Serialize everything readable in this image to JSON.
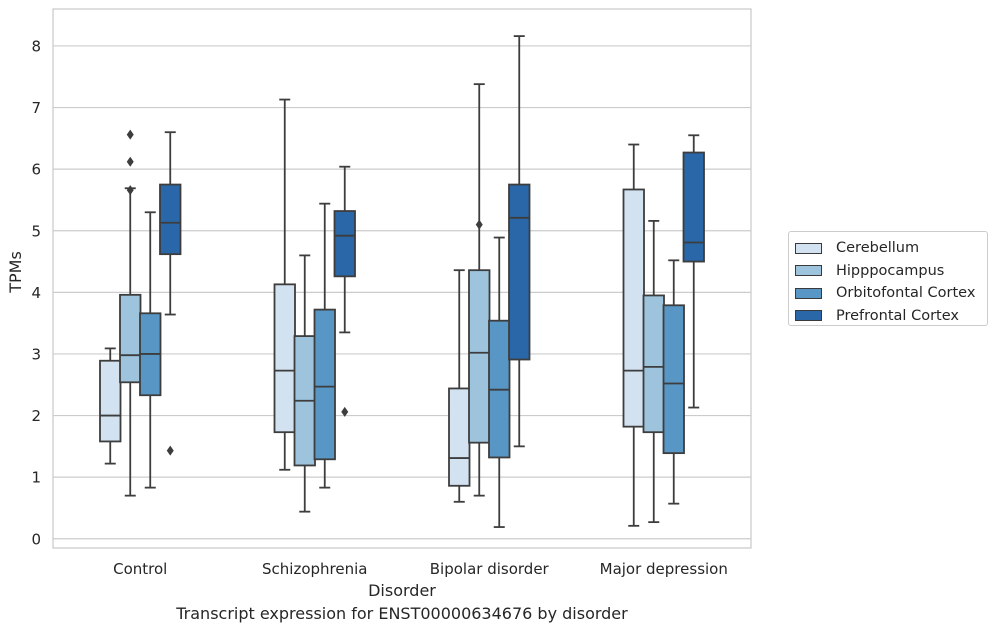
{
  "caption": "Transcript expression for ENST00000634676 by disorder",
  "chart_data": {
    "type": "boxplot",
    "xlabel": "Disorder",
    "ylabel": "TPMs",
    "ylim": [
      -0.15,
      8.6
    ],
    "yticks": [
      0,
      1,
      2,
      3,
      4,
      5,
      6,
      7,
      8
    ],
    "grid": "horizontal",
    "legend_position": "right",
    "categories": [
      "Control",
      "Schizophrenia",
      "Bipolar disorder",
      "Major depression"
    ],
    "series": [
      {
        "name": "Cerebellum",
        "color": "#d3e2f1",
        "boxes": [
          {
            "whislo": 1.22,
            "q1": 1.58,
            "med": 2.0,
            "q3": 2.89,
            "whishi": 3.09,
            "fliers": []
          },
          {
            "whislo": 1.12,
            "q1": 1.73,
            "med": 2.73,
            "q3": 4.13,
            "whishi": 7.13,
            "fliers": []
          },
          {
            "whislo": 0.6,
            "q1": 0.86,
            "med": 1.31,
            "q3": 2.44,
            "whishi": 4.36,
            "fliers": []
          },
          {
            "whislo": 0.21,
            "q1": 1.82,
            "med": 2.73,
            "q3": 5.67,
            "whishi": 6.4,
            "fliers": []
          }
        ]
      },
      {
        "name": "Hipppocampus",
        "color": "#9dc3dd",
        "boxes": [
          {
            "whislo": 0.7,
            "q1": 2.54,
            "med": 2.98,
            "q3": 3.96,
            "whishi": 5.69,
            "fliers": [
              5.66,
              6.12,
              6.56
            ]
          },
          {
            "whislo": 0.44,
            "q1": 1.19,
            "med": 2.24,
            "q3": 3.29,
            "whishi": 4.6,
            "fliers": []
          },
          {
            "whislo": 0.7,
            "q1": 1.56,
            "med": 3.02,
            "q3": 4.36,
            "whishi": 7.38,
            "fliers": [
              5.1
            ]
          },
          {
            "whislo": 0.27,
            "q1": 1.73,
            "med": 2.79,
            "q3": 3.95,
            "whishi": 5.16,
            "fliers": []
          }
        ]
      },
      {
        "name": "Orbitofontal Cortex",
        "color": "#5896c5",
        "boxes": [
          {
            "whislo": 0.83,
            "q1": 2.33,
            "med": 3.0,
            "q3": 3.66,
            "whishi": 5.3,
            "fliers": []
          },
          {
            "whislo": 0.83,
            "q1": 1.29,
            "med": 2.47,
            "q3": 3.72,
            "whishi": 5.44,
            "fliers": []
          },
          {
            "whislo": 0.19,
            "q1": 1.32,
            "med": 2.42,
            "q3": 3.54,
            "whishi": 4.89,
            "fliers": []
          },
          {
            "whislo": 0.57,
            "q1": 1.39,
            "med": 2.52,
            "q3": 3.79,
            "whishi": 4.52,
            "fliers": []
          }
        ]
      },
      {
        "name": "Prefrontal Cortex",
        "color": "#2a67a8",
        "boxes": [
          {
            "whislo": 3.64,
            "q1": 4.62,
            "med": 5.13,
            "q3": 5.75,
            "whishi": 6.6,
            "fliers": [
              1.43
            ]
          },
          {
            "whislo": 3.35,
            "q1": 4.26,
            "med": 4.92,
            "q3": 5.32,
            "whishi": 6.04,
            "fliers": [
              2.06
            ]
          },
          {
            "whislo": 1.5,
            "q1": 2.91,
            "med": 5.21,
            "q3": 5.75,
            "whishi": 8.16,
            "fliers": []
          },
          {
            "whislo": 2.13,
            "q1": 4.5,
            "med": 4.81,
            "q3": 6.27,
            "whishi": 6.55,
            "fliers": []
          }
        ]
      }
    ]
  }
}
